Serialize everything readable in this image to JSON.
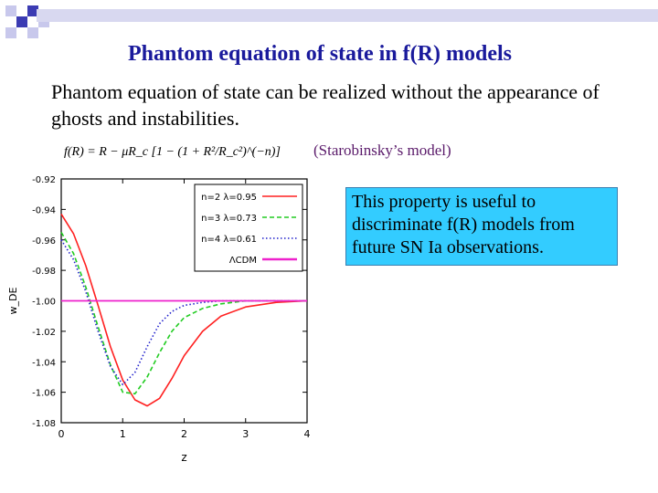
{
  "slide": {
    "title": "Phantom equation of state in f(R) models",
    "body": "Phantom equation of state can be realized without the appearance of ghosts and instabilities.",
    "formula_label": "f(R) = R − μR_c [1 − (1 + R²/R_c²)^(−n)]",
    "model_label": "(Starobinsky’s model)",
    "callout": "This property is useful to discriminate f(R) models from future SN Ia observations."
  },
  "colors": {
    "title": "#1a1a9c",
    "callout_bg": "#33ccff",
    "corner_blue": "#3b3bb3",
    "corner_light": "#c8c8ec"
  },
  "chart_data": {
    "type": "line",
    "xlabel": "z",
    "ylabel": "w_DE",
    "xlim": [
      0,
      4
    ],
    "ylim": [
      -1.08,
      -0.92
    ],
    "xticks": [
      "0",
      "1",
      "2",
      "3",
      "4"
    ],
    "yticks": [
      "-0.92",
      "-0.94",
      "-0.96",
      "-0.98",
      "-1.00",
      "-1.02",
      "-1.04",
      "-1.06",
      "-1.08"
    ],
    "legend_position": "top-right",
    "series": [
      {
        "name": "n=2 λ=0.95",
        "color": "#ff2020",
        "style": "solid",
        "x": [
          0,
          0.2,
          0.4,
          0.6,
          0.8,
          1.0,
          1.2,
          1.4,
          1.6,
          1.8,
          2.0,
          2.3,
          2.6,
          3.0,
          3.5,
          4.0
        ],
        "y": [
          -0.943,
          -0.956,
          -0.977,
          -1.003,
          -1.03,
          -1.052,
          -1.065,
          -1.069,
          -1.064,
          -1.051,
          -1.036,
          -1.02,
          -1.01,
          -1.004,
          -1.001,
          -1.0
        ]
      },
      {
        "name": "n=3 λ=0.73",
        "color": "#22cc22",
        "style": "dashed",
        "x": [
          0,
          0.2,
          0.4,
          0.6,
          0.8,
          1.0,
          1.2,
          1.4,
          1.6,
          1.8,
          2.0,
          2.3,
          2.6,
          3.0,
          3.5,
          4.0
        ],
        "y": [
          -0.955,
          -0.969,
          -0.991,
          -1.017,
          -1.042,
          -1.06,
          -1.061,
          -1.05,
          -1.034,
          -1.02,
          -1.011,
          -1.005,
          -1.002,
          -1.0,
          -1.0,
          -1.0
        ]
      },
      {
        "name": "n=4 λ=0.61",
        "color": "#2222cc",
        "style": "dotted",
        "x": [
          0,
          0.2,
          0.4,
          0.6,
          0.8,
          1.0,
          1.2,
          1.4,
          1.6,
          1.8,
          2.0,
          2.3,
          2.6,
          3.0,
          3.5,
          4.0
        ],
        "y": [
          -0.96,
          -0.973,
          -0.994,
          -1.02,
          -1.043,
          -1.055,
          -1.047,
          -1.03,
          -1.015,
          -1.007,
          -1.003,
          -1.001,
          -1.0,
          -1.0,
          -1.0,
          -1.0
        ]
      },
      {
        "name": "ΛCDM",
        "color": "#ee22cc",
        "style": "solid",
        "x": [
          0,
          4
        ],
        "y": [
          -1.0,
          -1.0
        ]
      }
    ]
  }
}
